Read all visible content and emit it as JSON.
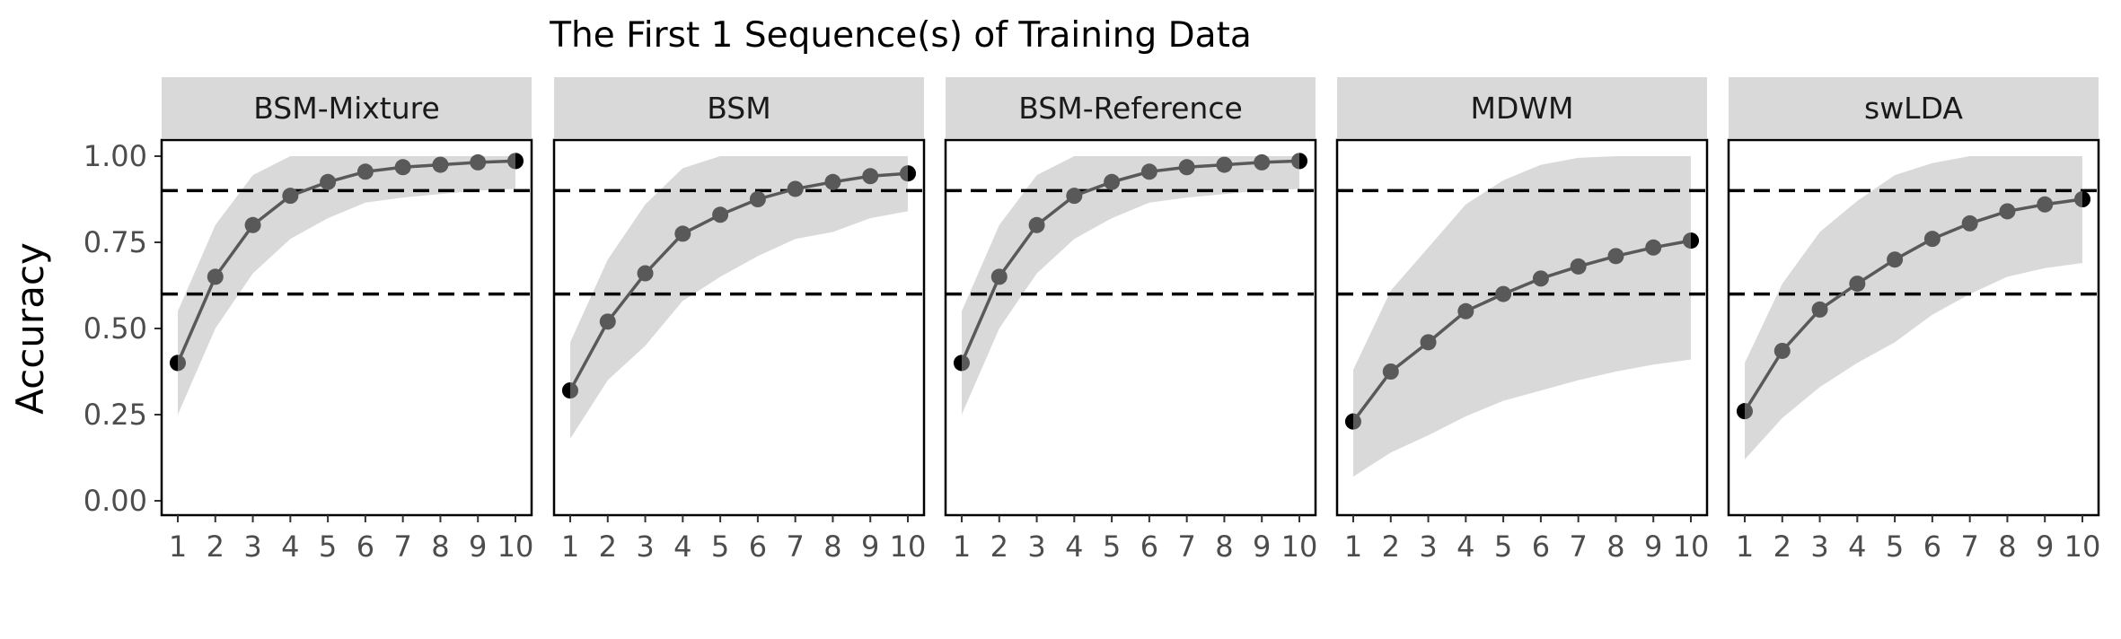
{
  "chart_data": {
    "type": "line",
    "title": "The First 1 Sequence(s) of Training Data",
    "ylabel": "Accuracy",
    "xlabel": "",
    "x": [
      1,
      2,
      3,
      4,
      5,
      6,
      7,
      8,
      9,
      10
    ],
    "x_tick_labels": [
      "1",
      "2",
      "3",
      "4",
      "5",
      "6",
      "7",
      "8",
      "9",
      "10"
    ],
    "ylim": [
      0,
      1
    ],
    "y_ticks": [
      0,
      0.25,
      0.5,
      0.75,
      1
    ],
    "y_tick_labels": [
      "0.00",
      "0.25",
      "0.50",
      "0.75",
      "1.00"
    ],
    "reference_lines": [
      0.9,
      0.6
    ],
    "colors": {
      "line": "#595959",
      "point": "#595959",
      "endpoint": "#000000",
      "band": "#d9d9d9",
      "strip": "#d9d9d9",
      "reference": "#000000"
    },
    "panels": [
      {
        "name": "BSM-Mixture",
        "values": [
          0.4,
          0.65,
          0.8,
          0.885,
          0.925,
          0.955,
          0.968,
          0.975,
          0.982,
          0.986
        ],
        "lower": [
          0.25,
          0.5,
          0.66,
          0.76,
          0.82,
          0.865,
          0.88,
          0.89,
          0.9,
          0.905
        ],
        "upper": [
          0.55,
          0.8,
          0.945,
          1.0,
          1.0,
          1.0,
          1.0,
          1.0,
          1.0,
          1.0
        ]
      },
      {
        "name": "BSM",
        "values": [
          0.32,
          0.52,
          0.66,
          0.775,
          0.83,
          0.875,
          0.905,
          0.925,
          0.942,
          0.95
        ],
        "lower": [
          0.18,
          0.35,
          0.45,
          0.58,
          0.65,
          0.71,
          0.76,
          0.78,
          0.82,
          0.84
        ],
        "upper": [
          0.46,
          0.7,
          0.86,
          0.965,
          1.0,
          1.0,
          1.0,
          1.0,
          1.0,
          1.0
        ]
      },
      {
        "name": "BSM-Reference",
        "values": [
          0.4,
          0.65,
          0.8,
          0.885,
          0.925,
          0.955,
          0.968,
          0.975,
          0.982,
          0.986
        ],
        "lower": [
          0.25,
          0.5,
          0.66,
          0.76,
          0.82,
          0.865,
          0.88,
          0.89,
          0.9,
          0.905
        ],
        "upper": [
          0.55,
          0.8,
          0.945,
          1.0,
          1.0,
          1.0,
          1.0,
          1.0,
          1.0,
          1.0
        ]
      },
      {
        "name": "MDWM",
        "values": [
          0.23,
          0.375,
          0.46,
          0.55,
          0.6,
          0.645,
          0.68,
          0.71,
          0.735,
          0.755
        ],
        "lower": [
          0.07,
          0.14,
          0.19,
          0.245,
          0.29,
          0.32,
          0.35,
          0.375,
          0.395,
          0.41
        ],
        "upper": [
          0.38,
          0.61,
          0.735,
          0.86,
          0.93,
          0.975,
          0.995,
          1.0,
          1.0,
          1.0
        ]
      },
      {
        "name": "swLDA",
        "values": [
          0.26,
          0.435,
          0.555,
          0.63,
          0.7,
          0.76,
          0.805,
          0.84,
          0.86,
          0.875
        ],
        "lower": [
          0.12,
          0.24,
          0.33,
          0.4,
          0.46,
          0.54,
          0.6,
          0.65,
          0.675,
          0.69
        ],
        "upper": [
          0.4,
          0.63,
          0.78,
          0.87,
          0.945,
          0.98,
          1.0,
          1.0,
          1.0,
          1.0
        ]
      }
    ]
  }
}
